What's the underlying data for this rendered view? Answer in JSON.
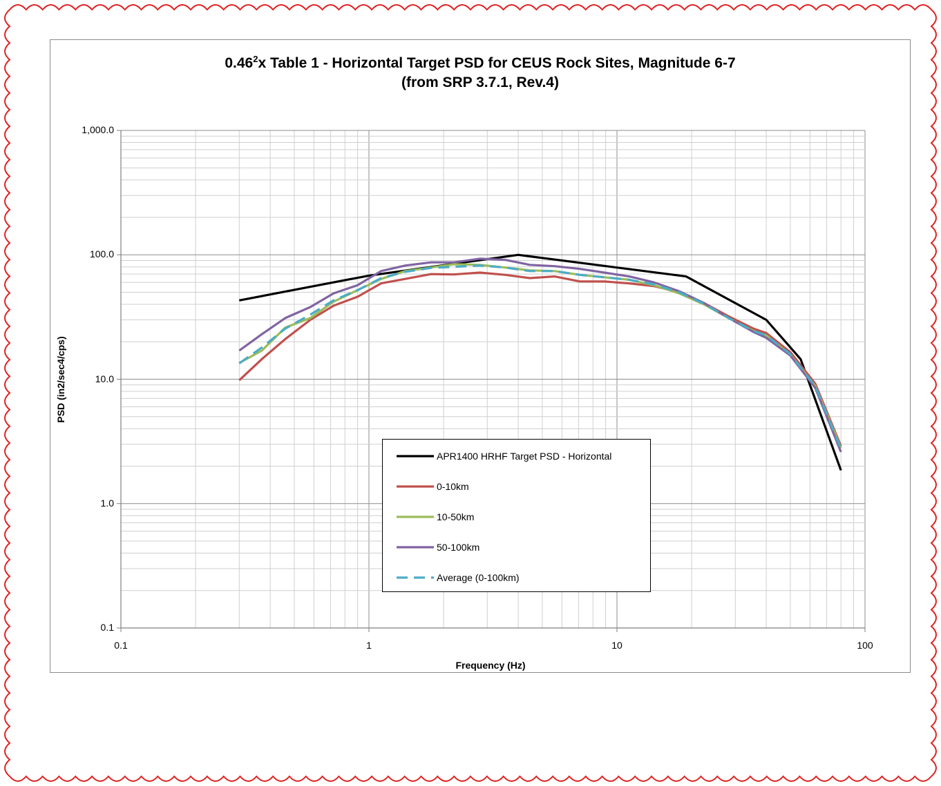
{
  "chart_data": {
    "type": "line",
    "title": "0.46",
    "title_superscript": "2",
    "title_rest": "x Table 1 - Horizontal Target PSD for CEUS Rock Sites, Magnitude 6-7",
    "subtitle": "(from SRP 3.7.1, Rev.4)",
    "xlabel": "Frequency (Hz)",
    "ylabel": "PSD (in2/sec4/cps)",
    "xscale": "log",
    "yscale": "log",
    "xlim": [
      0.1,
      100
    ],
    "ylim": [
      0.1,
      1000
    ],
    "x_tick_labels": [
      "0.1",
      "1",
      "10",
      "100"
    ],
    "y_tick_labels": [
      "0.1",
      "1.0",
      "10.0",
      "100.0",
      "1,000.0"
    ],
    "grid": true,
    "legend_position": "bottom-center",
    "series": [
      {
        "name": "APR1400 HRHF Target PSD - Horizontal",
        "color": "#000000",
        "dash": false,
        "x": [
          0.3,
          1.0,
          4.0,
          19.0,
          40.0,
          55.0,
          80.0
        ],
        "y": [
          43,
          68,
          100,
          67,
          30,
          14.5,
          1.85
        ]
      },
      {
        "name": "0-10km",
        "color": "#c0504d",
        "dash": false,
        "x": [
          0.3,
          0.37,
          0.46,
          0.58,
          0.72,
          0.9,
          1.12,
          1.4,
          1.78,
          2.2,
          2.8,
          3.55,
          4.45,
          5.6,
          7.1,
          8.9,
          11.2,
          14.1,
          17.8,
          22.4,
          28.2,
          35.5,
          40.0,
          50.0,
          63.0,
          80.0
        ],
        "y": [
          9.8,
          14.5,
          21,
          30,
          39,
          46,
          59,
          64,
          70,
          69.5,
          72,
          69,
          65,
          67,
          61,
          61,
          59,
          56,
          50,
          41,
          32,
          25.5,
          23.5,
          16.5,
          9.2,
          2.9
        ]
      },
      {
        "name": "10-50km",
        "color": "#9bbb59",
        "dash": false,
        "x": [
          0.3,
          0.37,
          0.46,
          0.58,
          0.72,
          0.9,
          1.12,
          1.4,
          1.78,
          2.2,
          2.8,
          3.55,
          4.45,
          5.6,
          7.1,
          8.9,
          11.2,
          14.1,
          17.8,
          22.4,
          28.2,
          35.5,
          40.0,
          50.0,
          63.0,
          80.0
        ],
        "y": [
          13.5,
          17,
          26,
          31,
          42,
          52,
          64,
          74,
          79,
          84,
          83,
          79,
          75,
          74,
          69,
          66,
          63,
          57,
          49,
          40,
          31,
          24.5,
          22.5,
          15.8,
          8.8,
          2.8
        ]
      },
      {
        "name": "50-100km",
        "color": "#8064a2",
        "dash": false,
        "x": [
          0.3,
          0.37,
          0.46,
          0.58,
          0.72,
          0.9,
          1.12,
          1.4,
          1.78,
          2.2,
          2.8,
          3.55,
          4.45,
          5.6,
          7.1,
          8.9,
          11.2,
          14.1,
          17.8,
          22.4,
          28.2,
          35.5,
          40.0,
          50.0,
          63.0,
          80.0
        ],
        "y": [
          17,
          23,
          31,
          38,
          49,
          57,
          74,
          82,
          87,
          87,
          93,
          91,
          83,
          81,
          77,
          72,
          67,
          60,
          51,
          41,
          31,
          24,
          21.5,
          15.5,
          8.5,
          2.6
        ]
      },
      {
        "name": "Average (0-100km)",
        "color": "#4bacc6",
        "dash": true,
        "x": [
          0.3,
          0.37,
          0.46,
          0.58,
          0.72,
          0.9,
          1.12,
          1.4,
          1.78,
          2.2,
          2.8,
          3.55,
          4.45,
          5.6,
          7.1,
          8.9,
          11.2,
          14.1,
          17.8,
          22.4,
          28.2,
          35.5,
          40.0,
          50.0,
          63.0,
          80.0
        ],
        "y": [
          13.4,
          18,
          25.5,
          33,
          43,
          52,
          65,
          73,
          78.5,
          80,
          82,
          79,
          74,
          74,
          69,
          66,
          63,
          58,
          50,
          40.5,
          31,
          24.5,
          22.5,
          15.9,
          8.8,
          2.75
        ]
      }
    ]
  }
}
